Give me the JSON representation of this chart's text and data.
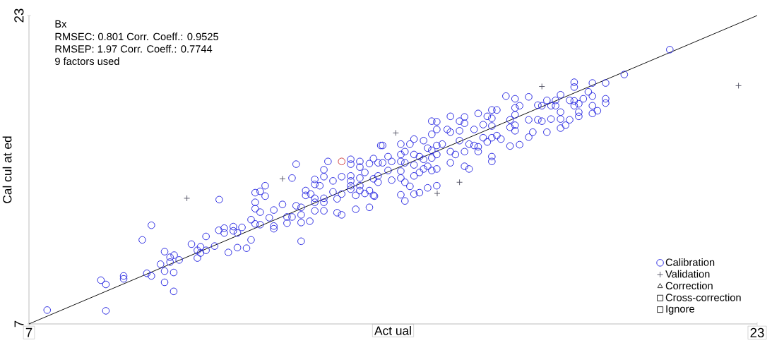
{
  "chart_data": {
    "type": "scatter",
    "xlabel": "Act ual",
    "ylabel": "Cal cul at ed",
    "xlim": [
      7,
      23
    ],
    "ylim": [
      7,
      23
    ],
    "xticks": [
      7,
      23
    ],
    "yticks": [
      7,
      23
    ],
    "legend": "bottom right",
    "annotations": [
      "Bx",
      "RMSEC: 0.801   Corr. Coeff.: 0.9525",
      "RMSEP:  1.97   Corr. Coeff.: 0.7744",
      "9 factors used"
    ],
    "series": [
      {
        "name": "Calibration",
        "color": "#2020e0",
        "marker": "circle",
        "x": [
          7.4,
          8.69,
          8.58,
          8.69,
          9.08,
          9.08,
          9.59,
          9.69,
          9.49,
          9.69,
          9.98,
          9.98,
          9.98,
          10.18,
          10.18,
          10.1,
          10.1,
          10.19,
          10.3,
          9.89,
          10.57,
          10.7,
          10.7,
          10.77,
          10.77,
          10.89,
          10.89,
          11.08,
          11.17,
          11.29,
          11.29,
          11.38,
          11.49,
          11.49,
          11.58,
          11.58,
          11.68,
          11.78,
          11.18,
          11.88,
          11.88,
          11.97,
          12.08,
          11.97,
          11.97,
          11.97,
          12.08,
          12.08,
          12.19,
          12.19,
          12.28,
          12.38,
          12.38,
          12.38,
          12.57,
          12.67,
          12.67,
          12.78,
          12.87,
          12.87,
          12.78,
          12.98,
          12.98,
          12.98,
          12.98,
          13.17,
          13.08,
          13.08,
          13.19,
          13.28,
          13.28,
          13.28,
          13.28,
          13.28,
          13.39,
          13.48,
          13.48,
          13.48,
          13.48,
          13.48,
          13.57,
          13.68,
          13.68,
          13.77,
          13.77,
          13.87,
          13.87,
          13.87,
          14.07,
          14.07,
          14.07,
          14.07,
          14.07,
          14.07,
          14.18,
          14.18,
          14.27,
          14.27,
          14.27,
          14.27,
          14.27,
          14.38,
          14.38,
          14.48,
          14.48,
          14.48,
          14.57,
          14.57,
          14.57,
          14.73,
          14.59,
          14.67,
          14.67,
          14.67,
          14.77,
          14.77,
          14.89,
          14.89,
          14.97,
          14.97,
          15.17,
          15.17,
          15.17,
          15.17,
          15.17,
          15.17,
          15.26,
          15.26,
          15.26,
          15.26,
          15.37,
          15.37,
          15.46,
          15.46,
          15.46,
          15.46,
          15.46,
          15.58,
          15.58,
          15.58,
          15.67,
          15.67,
          15.67,
          15.76,
          15.76,
          15.76,
          15.85,
          15.85,
          15.85,
          15.85,
          15.85,
          15.96,
          15.96,
          15.96,
          15.96,
          15.96,
          15.96,
          16.08,
          16.19,
          16.26,
          16.26,
          16.26,
          16.26,
          16.37,
          16.46,
          16.46,
          16.46,
          16.57,
          16.57,
          16.57,
          16.57,
          16.67,
          16.67,
          16.78,
          16.78,
          16.87,
          16.87,
          16.87,
          16.98,
          16.98,
          17.07,
          17.07,
          17.17,
          17.17,
          17.17,
          17.17,
          17.17,
          17.17,
          17.28,
          17.28,
          17.37,
          17.48,
          17.57,
          17.57,
          17.57,
          17.68,
          17.68,
          17.68,
          17.68,
          17.68,
          17.78,
          17.78,
          17.98,
          17.98,
          17.98,
          18.07,
          18.18,
          18.18,
          18.27,
          18.27,
          18.38,
          18.38,
          18.47,
          18.47,
          18.57,
          18.57,
          18.68,
          18.68,
          18.68,
          18.68,
          18.79,
          18.88,
          18.88,
          18.98,
          18.98,
          18.98,
          18.98,
          19.08,
          19.08,
          19.08,
          19.18,
          19.29,
          19.38,
          19.38,
          19.38,
          19.38,
          19.49,
          19.67,
          19.67,
          19.67,
          20.08,
          21.08
        ],
        "values": [
          7.72,
          7.68,
          9.27,
          9.05,
          9.49,
          9.34,
          9.63,
          9.49,
          11.36,
          12.12,
          10.75,
          9.74,
          9.16,
          8.69,
          9.67,
          10.46,
          10.21,
          10.57,
          10.32,
          10.1,
          11.14,
          10.42,
          10.82,
          11.0,
          10.68,
          11.54,
          10.82,
          11.04,
          11.86,
          11.97,
          11.72,
          10.71,
          12.05,
          11.83,
          11.72,
          10.96,
          12.01,
          10.93,
          13.45,
          11.36,
          12.41,
          12.19,
          12.15,
          13.81,
          13.31,
          12.98,
          12.8,
          13.88,
          14.17,
          13.63,
          12.51,
          12.91,
          12.08,
          11.94,
          13.2,
          12.55,
          12.23,
          12.55,
          13.13,
          15.29,
          14.57,
          13.05,
          12.66,
          12.26,
          11.29,
          12.33,
          13.92,
          13.67,
          13.74,
          14.5,
          14.24,
          13.52,
          13.31,
          12.87,
          14.17,
          15.0,
          14.64,
          13.52,
          13.31,
          12.87,
          15.43,
          14.42,
          13.85,
          13.49,
          12.77,
          12.66,
          13.74,
          14.64,
          15.54,
          15.29,
          14.68,
          14.42,
          14.17,
          13.99,
          13.67,
          12.95,
          15.43,
          15.14,
          14.57,
          14.17,
          13.92,
          14.86,
          13.77,
          15.32,
          13.92,
          13.05,
          15.58,
          13.67,
          14.53,
          16.26,
          13.63,
          15.36,
          14.68,
          14.35,
          16.26,
          15.36,
          15.68,
          14.96,
          14.46,
          15.43,
          16.33,
          15.79,
          15.43,
          14.93,
          14.57,
          13.7,
          15.94,
          15.36,
          14.35,
          13.38,
          16.33,
          14.14,
          16.59,
          15.79,
          15.25,
          14.68,
          13.74,
          15.68,
          14.86,
          13.81,
          16.51,
          15.54,
          15.04,
          16.12,
          15.18,
          14.06,
          17.52,
          16.84,
          16.01,
          15.61,
          14.96,
          17.49,
          17.09,
          16.26,
          15.79,
          15.04,
          14.17,
          16.33,
          17.09,
          17.77,
          16.95,
          15.94,
          15.36,
          15.79,
          17.52,
          17.02,
          16.51,
          17.74,
          17.41,
          15.94,
          15.18,
          16.33,
          15.04,
          17.09,
          16.26,
          17.92,
          16.19,
          15.94,
          17.34,
          16.66,
          17.77,
          16.44,
          18.1,
          17.67,
          17.27,
          16.66,
          15.68,
          15.43,
          18.1,
          16.77,
          16.59,
          18.82,
          17.59,
          17.2,
          16.23,
          18.68,
          18.21,
          17.85,
          17.31,
          17.02,
          18.32,
          16.3,
          18.78,
          17.59,
          16.69,
          16.95,
          18.35,
          17.59,
          18.32,
          17.52,
          18.6,
          16.95,
          18.32,
          17.63,
          18.6,
          18.32,
          18.89,
          17.99,
          17.63,
          17.16,
          17.31,
          18.6,
          17.59,
          19.54,
          19.29,
          18.57,
          18.32,
          18.42,
          17.99,
          17.77,
          18.68,
          19.04,
          19.5,
          18.82,
          18.32,
          17.92,
          18.06,
          19.5,
          18.68,
          18.46,
          19.94,
          21.23
        ]
      },
      {
        "color": "#cc3030",
        "marker": "circle",
        "x": [
          13.87
        ],
        "values": [
          15.43
        ]
      },
      {
        "name": "Validation",
        "color": "#555566",
        "marker": "cross",
        "x": [
          15.06,
          18.27,
          16.46,
          15.97,
          22.59,
          10.47,
          12.57
        ],
        "values": [
          16.91,
          19.32,
          14.35,
          13.77,
          19.36,
          13.52,
          14.53
        ]
      },
      {
        "name": "Correction",
        "color": "#222222",
        "marker": "triangle"
      },
      {
        "name": "Cross-correction",
        "color": "#222222",
        "marker": "square"
      },
      {
        "name": "Ignore",
        "color": "#222222",
        "marker": "square"
      },
      {
        "type": "line",
        "color": "#000000",
        "line_style": "solid",
        "marker": "none",
        "x": [
          7,
          23
        ],
        "values": [
          7,
          23
        ]
      }
    ]
  }
}
